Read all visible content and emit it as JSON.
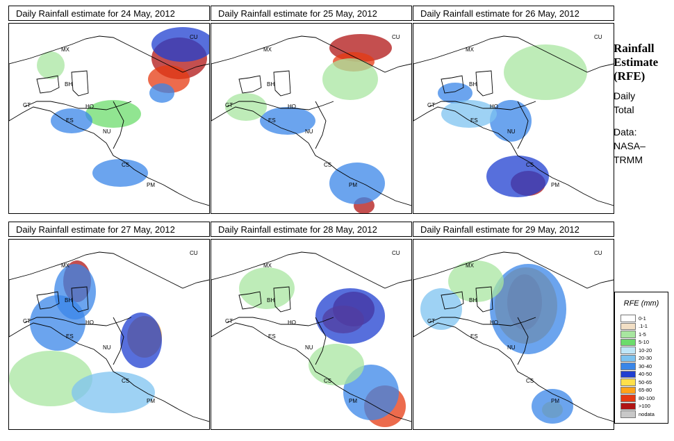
{
  "panels": [
    {
      "title": "Daily Rainfall estimate for  24 May, 2012"
    },
    {
      "title": "Daily Rainfall estimate for  25 May, 2012"
    },
    {
      "title": "Daily Rainfall estimate for  26 May, 2012"
    },
    {
      "title": "Daily Rainfall estimate for  27 May, 2012"
    },
    {
      "title": "Daily Rainfall estimate for  28 May, 2012"
    },
    {
      "title": "Daily Rainfall estimate for  29 May, 2012"
    }
  ],
  "country_labels": [
    "MX",
    "CU",
    "BH",
    "GT",
    "HO",
    "ES",
    "NU",
    "CS",
    "PM"
  ],
  "sidebar": {
    "title_lines": [
      "Rainfall",
      "Estimate",
      "(RFE)"
    ],
    "subtitle_lines": [
      "Daily",
      "Total"
    ],
    "data_lines": [
      "Data:",
      "NASA–",
      "TRMM"
    ]
  },
  "legend": {
    "title": "RFE (mm)",
    "items": [
      {
        "label": "0-1",
        "color": "#ffffff"
      },
      {
        "label": ".1-1",
        "color": "#f2dfc5"
      },
      {
        "label": "1-5",
        "color": "#a8e6a0"
      },
      {
        "label": "5-10",
        "color": "#6cdc6c"
      },
      {
        "label": "10-20",
        "color": "#bfe6f7"
      },
      {
        "label": "20-30",
        "color": "#7dc3f0"
      },
      {
        "label": "30-40",
        "color": "#3a86e8"
      },
      {
        "label": "40-50",
        "color": "#1f3fd0"
      },
      {
        "label": "50-65",
        "color": "#ffe04a"
      },
      {
        "label": "65-80",
        "color": "#ffa31a"
      },
      {
        "label": "80-100",
        "color": "#e63a12"
      },
      {
        "label": ">100",
        "color": "#b01414"
      },
      {
        "label": "nodata",
        "color": "#c8c8c8"
      }
    ]
  }
}
